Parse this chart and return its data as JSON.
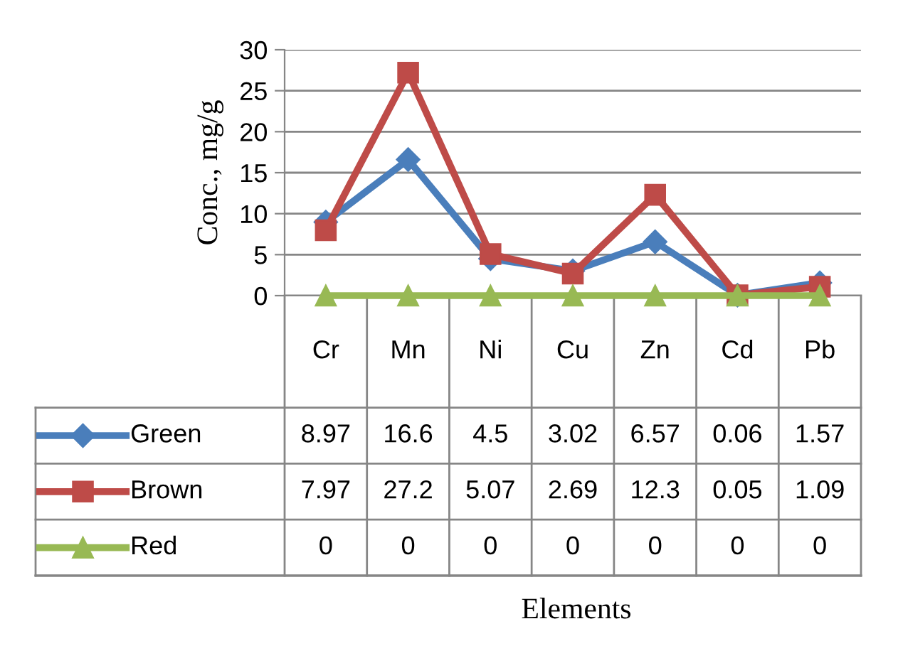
{
  "chart_data": {
    "type": "line",
    "annotations": [
      "Elements"
    ],
    "ylabel": "Conc., mg/g",
    "categories": [
      "Cr",
      "Mn",
      "Ni",
      "Cu",
      "Zn",
      "Cd",
      "Pb"
    ],
    "series": [
      {
        "name": "Green",
        "color": "#4a7ebb",
        "marker": "diamond",
        "values": [
          8.97,
          16.6,
          4.5,
          3.02,
          6.57,
          0.06,
          1.57
        ]
      },
      {
        "name": "Brown",
        "color": "#be4b48",
        "marker": "square",
        "values": [
          7.97,
          27.2,
          5.07,
          2.69,
          12.3,
          0.05,
          1.09
        ]
      },
      {
        "name": "Red",
        "color": "#98b954",
        "marker": "triangle",
        "values": [
          0,
          0,
          0,
          0,
          0,
          0,
          0
        ]
      }
    ],
    "ylim": [
      0,
      30
    ],
    "yticks": [
      0,
      5,
      10,
      15,
      20,
      25,
      30
    ],
    "grid": "y",
    "legend": "bottom left",
    "data_labels": true
  }
}
